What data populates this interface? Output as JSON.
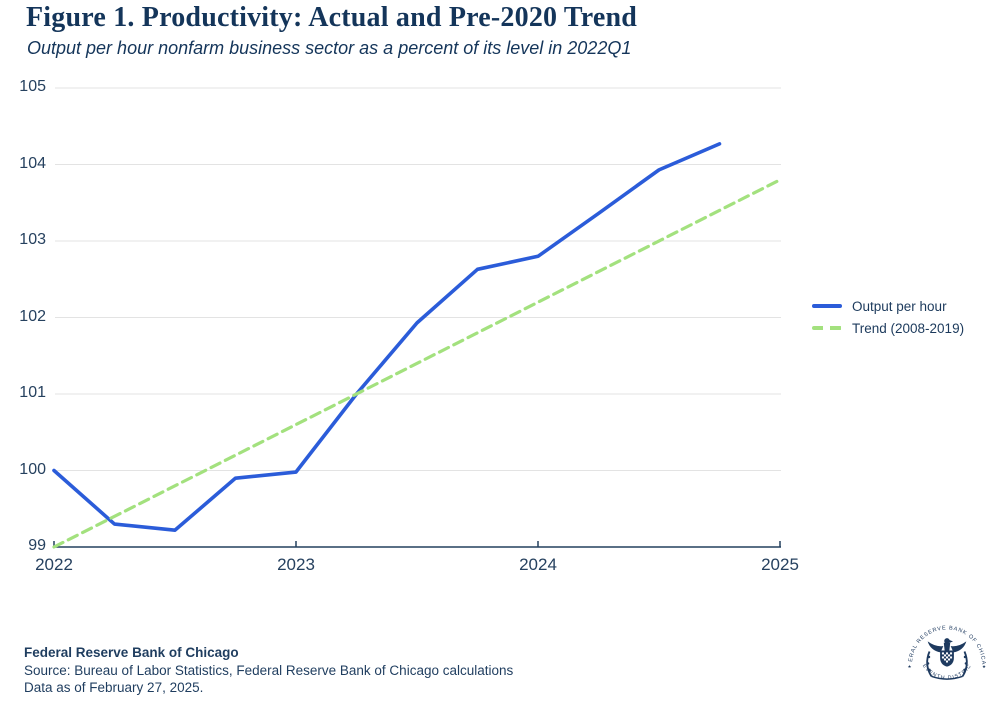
{
  "header": {
    "title": "Figure 1. Productivity: Actual and Pre-2020 Trend",
    "subtitle": "Output per hour nonfarm business sector as a percent of its level in 2022Q1"
  },
  "chart_data": {
    "type": "line",
    "title": "Figure 1. Productivity: Actual and Pre-2020 Trend",
    "subtitle": "Output per hour nonfarm business sector as a percent of its level in 2022Q1",
    "xlabel": "",
    "ylabel": "",
    "xlim": [
      2022,
      2025
    ],
    "ylim": [
      99,
      105
    ],
    "xticks": [
      2022,
      2023,
      2024,
      2025
    ],
    "yticks": [
      99,
      100,
      101,
      102,
      103,
      104,
      105
    ],
    "grid": true,
    "legend_position": "right",
    "series": [
      {
        "name": "Output per hour",
        "color": "#2b5cd9",
        "style": "solid",
        "x": [
          2022.0,
          2022.25,
          2022.5,
          2022.75,
          2023.0,
          2023.25,
          2023.5,
          2023.75,
          2024.0,
          2024.25,
          2024.5,
          2024.75
        ],
        "values": [
          100.0,
          99.3,
          99.22,
          99.9,
          99.98,
          101.0,
          101.93,
          102.63,
          102.8,
          103.36,
          103.93,
          104.27
        ]
      },
      {
        "name": "Trend (2008-2019)",
        "color": "#a3e17e",
        "style": "dashed",
        "x": [
          2022.0,
          2025.0
        ],
        "values": [
          99.0,
          103.8
        ]
      }
    ]
  },
  "colors": {
    "navy_text": "#14355a",
    "tick_label": "#26415f",
    "gridline": "#e3e3e3",
    "axis_line": "#23405e",
    "series_blue": "#2b5cd9",
    "series_green": "#a3e17e",
    "seal_navy": "#1e3a5f"
  },
  "footer": {
    "org": "Federal Reserve Bank of Chicago",
    "source": "Source: Bureau of Labor Statistics, Federal Reserve Bank of Chicago calculations",
    "as_of": "Data as of February 27, 2025."
  },
  "logo": {
    "name": "federal-reserve-bank-of-chicago-seal",
    "text_top": "FEDERAL RESERVE BANK OF CHICAGO",
    "text_bottom": "SEVENTH DISTRICT"
  }
}
